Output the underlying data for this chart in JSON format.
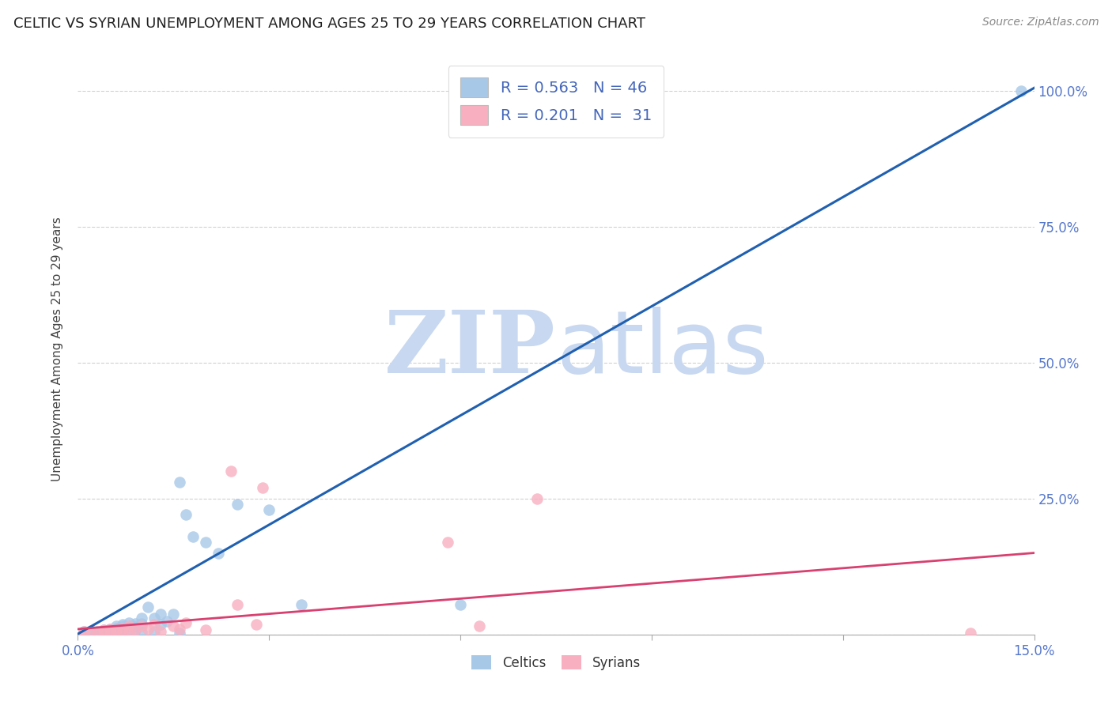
{
  "title": "CELTIC VS SYRIAN UNEMPLOYMENT AMONG AGES 25 TO 29 YEARS CORRELATION CHART",
  "source": "Source: ZipAtlas.com",
  "ylabel": "Unemployment Among Ages 25 to 29 years",
  "x_min": 0.0,
  "x_max": 0.15,
  "y_min": 0.0,
  "y_max": 1.05,
  "x_ticks": [
    0.0,
    0.03,
    0.06,
    0.09,
    0.12,
    0.15
  ],
  "x_tick_labels": [
    "0.0%",
    "",
    "",
    "",
    "",
    "15.0%"
  ],
  "y_ticks": [
    0.0,
    0.25,
    0.5,
    0.75,
    1.0
  ],
  "y_tick_labels_right": [
    "",
    "25.0%",
    "50.0%",
    "75.0%",
    "100.0%"
  ],
  "celtic_color": "#a8c8e8",
  "celtic_line_color": "#2060b0",
  "syrian_color": "#f8b0c0",
  "syrian_line_color": "#d84070",
  "celtic_R": 0.563,
  "celtic_N": 46,
  "syrian_R": 0.201,
  "syrian_N": 31,
  "watermark_zip": "ZIP",
  "watermark_atlas": "atlas",
  "watermark_color": "#c8d8f0",
  "title_color": "#222222",
  "axis_text_color": "#5577cc",
  "dot_size": 110,
  "legend_text_color": "#4466bb",
  "celtic_x": [
    0.001,
    0.001,
    0.002,
    0.002,
    0.003,
    0.003,
    0.003,
    0.004,
    0.004,
    0.005,
    0.005,
    0.005,
    0.006,
    0.006,
    0.006,
    0.007,
    0.007,
    0.007,
    0.007,
    0.008,
    0.008,
    0.008,
    0.009,
    0.009,
    0.009,
    0.01,
    0.01,
    0.01,
    0.011,
    0.012,
    0.012,
    0.013,
    0.013,
    0.014,
    0.015,
    0.016,
    0.016,
    0.017,
    0.018,
    0.02,
    0.022,
    0.025,
    0.03,
    0.035,
    0.06,
    0.148
  ],
  "celtic_y": [
    0.003,
    0.005,
    0.007,
    0.004,
    0.006,
    0.004,
    0.002,
    0.008,
    0.004,
    0.01,
    0.006,
    0.003,
    0.015,
    0.012,
    0.008,
    0.018,
    0.015,
    0.01,
    0.006,
    0.022,
    0.016,
    0.007,
    0.02,
    0.015,
    0.008,
    0.03,
    0.02,
    0.004,
    0.05,
    0.03,
    0.006,
    0.038,
    0.018,
    0.025,
    0.038,
    0.28,
    0.002,
    0.22,
    0.18,
    0.17,
    0.15,
    0.24,
    0.23,
    0.055,
    0.055,
    1.0
  ],
  "syrian_x": [
    0.001,
    0.001,
    0.002,
    0.003,
    0.004,
    0.004,
    0.005,
    0.005,
    0.006,
    0.006,
    0.007,
    0.007,
    0.008,
    0.008,
    0.009,
    0.01,
    0.011,
    0.012,
    0.013,
    0.015,
    0.016,
    0.017,
    0.02,
    0.024,
    0.025,
    0.028,
    0.029,
    0.058,
    0.063,
    0.072,
    0.14
  ],
  "syrian_y": [
    0.003,
    0.005,
    0.006,
    0.004,
    0.008,
    0.003,
    0.01,
    0.004,
    0.009,
    0.004,
    0.012,
    0.004,
    0.015,
    0.006,
    0.008,
    0.016,
    0.01,
    0.018,
    0.006,
    0.015,
    0.01,
    0.022,
    0.008,
    0.3,
    0.055,
    0.018,
    0.27,
    0.17,
    0.016,
    0.25,
    0.003
  ],
  "celtic_line": [
    0.0,
    0.001,
    0.15,
    1.005
  ],
  "syrian_line": [
    0.0,
    0.01,
    0.15,
    0.15
  ]
}
